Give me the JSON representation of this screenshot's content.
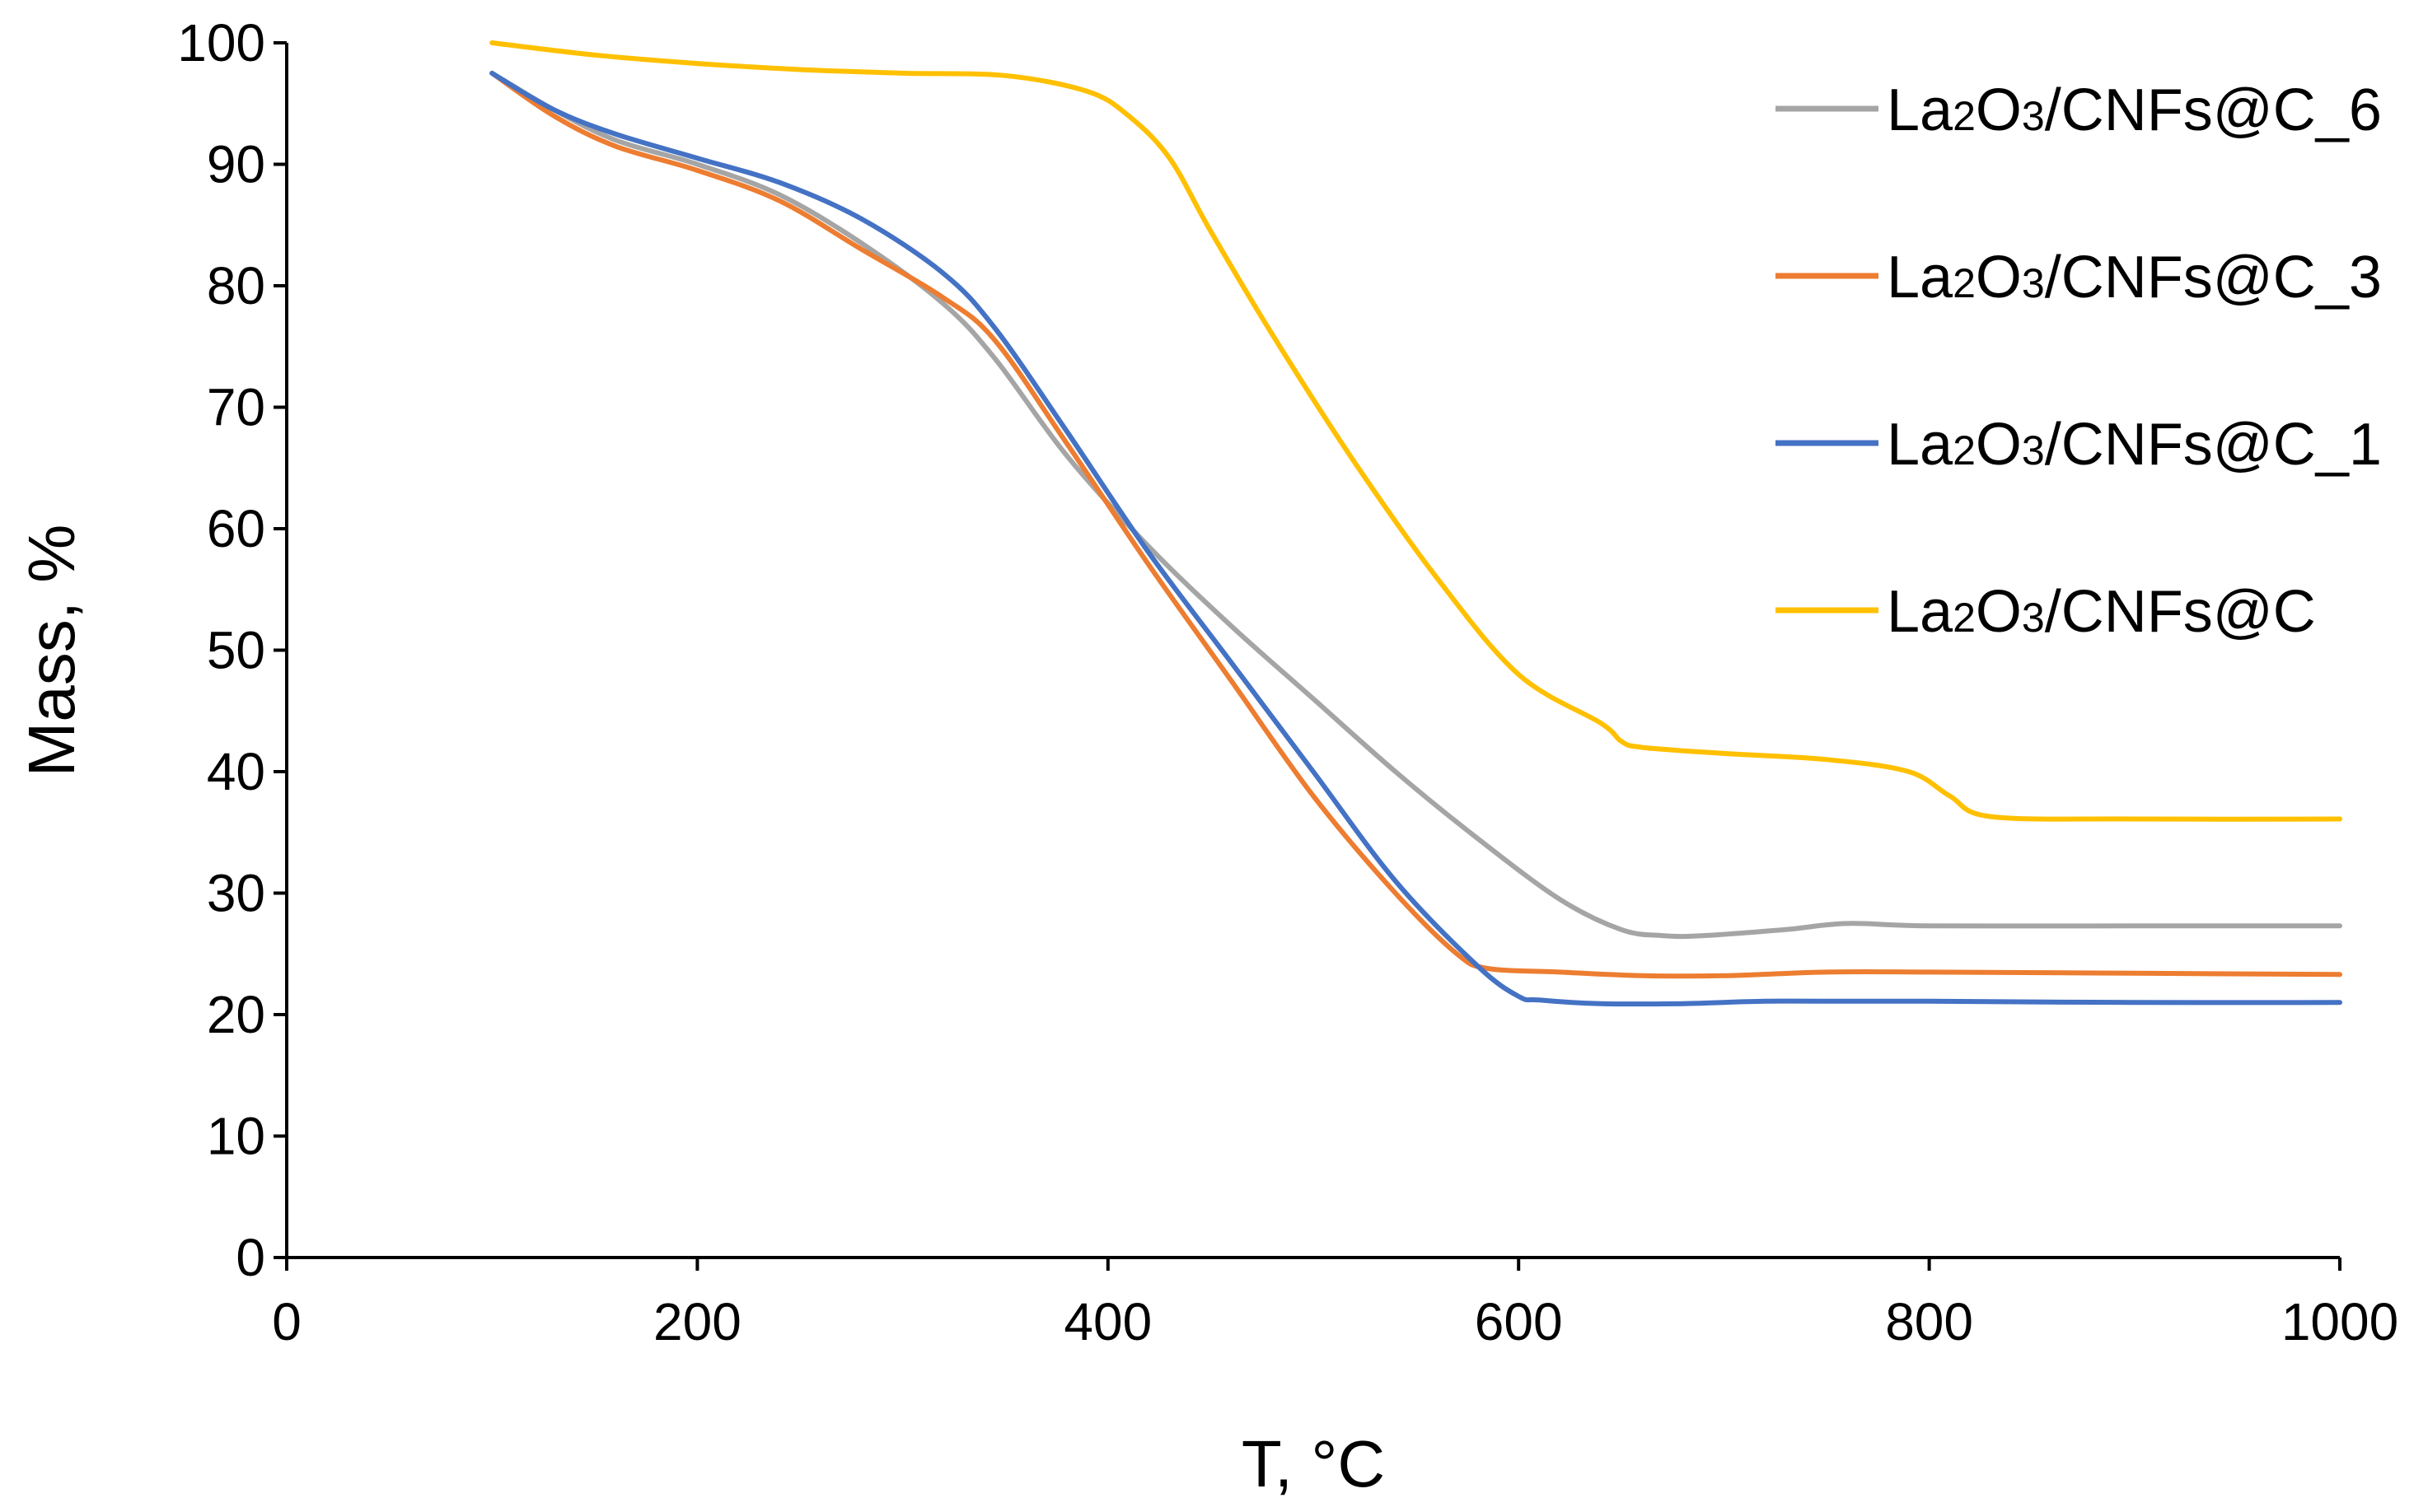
{
  "chart_data": {
    "type": "line",
    "title": "",
    "xlabel": "T, °C",
    "ylabel": "Mass, %",
    "xlim": [
      0,
      1000
    ],
    "ylim": [
      0,
      100
    ],
    "xticks": [
      0,
      200,
      400,
      600,
      800,
      1000
    ],
    "yticks": [
      0,
      10,
      20,
      30,
      40,
      50,
      60,
      70,
      80,
      90,
      100
    ],
    "grid": false,
    "legend_position": "top-right",
    "series": [
      {
        "name": "La2O3/CNFs@C_6",
        "color": "#a5a5a5",
        "x": [
          100,
          130,
          160,
          200,
          240,
          280,
          320,
          345,
          380,
          420,
          460,
          500,
          540,
          580,
          620,
          650,
          670,
          690,
          730,
          760,
          800,
          900,
          1000
        ],
        "y": [
          97.5,
          94.5,
          92,
          90,
          87.5,
          83.5,
          78.5,
          74,
          66,
          58.5,
          52,
          46,
          40,
          34.5,
          29.5,
          27,
          26.5,
          26.5,
          27,
          27.5,
          27.3,
          27.3,
          27.3
        ]
      },
      {
        "name": "La2O3/CNFs@C_3",
        "color": "#ed7d31",
        "x": [
          100,
          130,
          160,
          200,
          240,
          280,
          320,
          345,
          380,
          420,
          460,
          500,
          540,
          570,
          585,
          620,
          660,
          700,
          750,
          800,
          900,
          1000
        ],
        "y": [
          97.5,
          94,
          91.5,
          89.5,
          87,
          83,
          79,
          75.5,
          67,
          57,
          47.5,
          38,
          30,
          25,
          23.8,
          23.5,
          23.2,
          23.2,
          23.5,
          23.5,
          23.4,
          23.3
        ]
      },
      {
        "name": "La2O3/CNFs@C_1",
        "color": "#4472c4",
        "x": [
          100,
          130,
          160,
          200,
          240,
          280,
          320,
          345,
          380,
          420,
          460,
          500,
          540,
          580,
          600,
          610,
          640,
          680,
          720,
          760,
          800,
          900,
          1000
        ],
        "y": [
          97.5,
          94.5,
          92.5,
          90.5,
          88.5,
          85.5,
          81,
          76.5,
          68,
          58,
          49,
          40,
          31,
          24,
          21.5,
          21.2,
          20.9,
          20.9,
          21.1,
          21.1,
          21.1,
          21.0,
          21.0
        ]
      },
      {
        "name": "La2O3/CNFs@C",
        "color": "#ffc000",
        "x": [
          100,
          150,
          200,
          250,
          300,
          350,
          390,
          410,
          430,
          450,
          480,
          520,
          560,
          600,
          640,
          650,
          660,
          700,
          750,
          790,
          810,
          830,
          900,
          1000
        ],
        "y": [
          100,
          99,
          98.3,
          97.8,
          97.5,
          97.3,
          96,
          94,
          90.5,
          84.5,
          76,
          65.5,
          56,
          48,
          44,
          42.5,
          42,
          41.5,
          41,
          40,
          38,
          36.3,
          36.1,
          36.1
        ]
      }
    ]
  }
}
